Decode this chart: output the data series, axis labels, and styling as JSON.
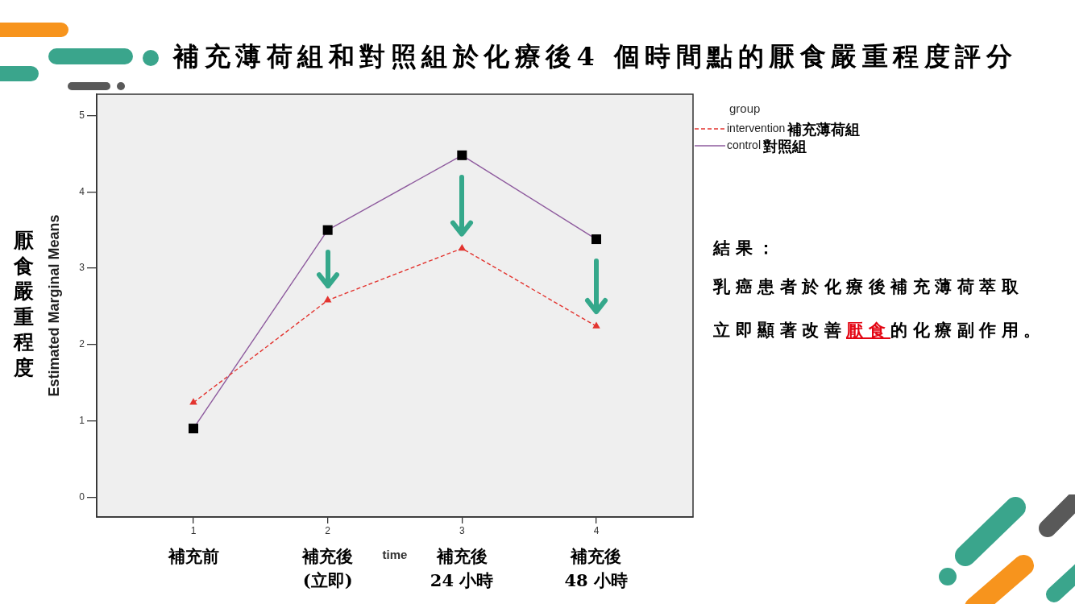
{
  "chart_data": {
    "type": "line",
    "title": "補充薄荷組和對照組於化療後4 個時間點的厭食嚴重程度評分",
    "xlabel": "time",
    "ylabel": "Estimated Marginal Means",
    "legend_title": "group",
    "legend": "top right",
    "x": [
      1,
      2,
      3,
      4
    ],
    "xlim": [
      0.28,
      4.72
    ],
    "xticks": [
      1,
      2,
      3,
      4
    ],
    "ylim": [
      -0.26,
      5.28
    ],
    "yticks": [
      0,
      1,
      2,
      3,
      4,
      5
    ],
    "series": [
      {
        "name": "intervention 補充薄荷組",
        "color": "#e3342f",
        "values": [
          1.24,
          2.58,
          3.26,
          2.24
        ],
        "marker": "triangle",
        "line_style": "dashed"
      },
      {
        "name": "control 對照組",
        "color": "#8e5b9e",
        "colors": [
          "#000000",
          "#000000",
          "#000000",
          "#000000"
        ],
        "values": [
          0.9,
          3.5,
          4.48,
          3.38
        ],
        "marker": "square",
        "line_style": "solid"
      }
    ],
    "annotations": [
      "厭食嚴重程度",
      "補充前",
      "補充後\n(立即)",
      "補充後\n24 小時",
      "補充後\n48 小時",
      "結果：",
      "乳癌患者於化療後補充薄荷萃取",
      "立即顯著改善",
      "厭食",
      "的化療副作用。"
    ]
  }
}
